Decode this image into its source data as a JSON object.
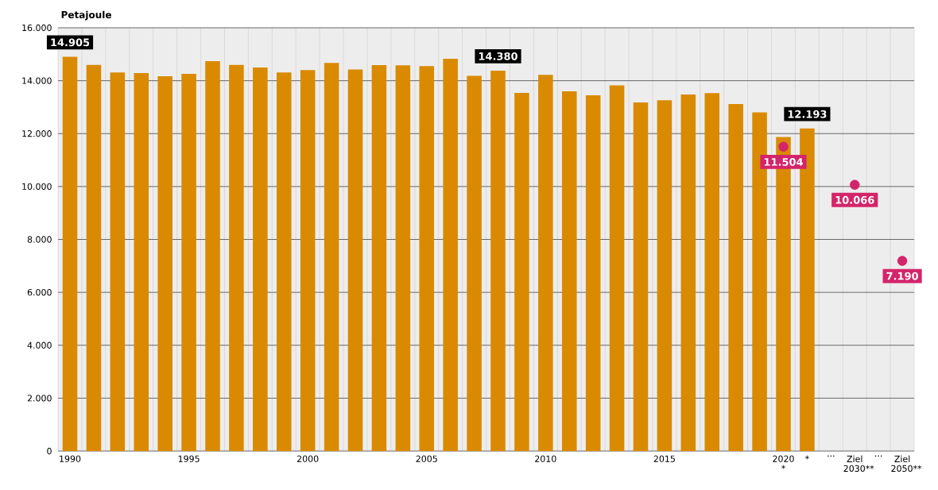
{
  "chart_data": {
    "type": "bar",
    "ylabel": "Petajoule",
    "categories": [
      "1990",
      null,
      null,
      null,
      null,
      "1995",
      null,
      null,
      null,
      null,
      "2000",
      null,
      null,
      null,
      null,
      "2005",
      null,
      null,
      null,
      null,
      "2010",
      null,
      null,
      null,
      null,
      "2015",
      null,
      null,
      null,
      null,
      "2020 *",
      "*",
      "...",
      "Ziel 2030**",
      "...",
      "Ziel 2050**"
    ],
    "series": [
      {
        "color": "#d98a00",
        "values": [
          14905,
          14600,
          14310,
          14290,
          14170,
          14260,
          14740,
          14600,
          14500,
          14310,
          14400,
          14670,
          14420,
          14590,
          14580,
          14550,
          14830,
          14180,
          14380,
          13540,
          14220,
          13600,
          13450,
          13820,
          13180,
          13260,
          13480,
          13530,
          13120,
          12800,
          11870,
          12193,
          null,
          null,
          null,
          null
        ],
        "value_labels": [
          "14.905",
          null,
          null,
          null,
          null,
          null,
          null,
          null,
          null,
          null,
          null,
          null,
          null,
          null,
          null,
          null,
          null,
          null,
          "14.380",
          null,
          null,
          null,
          null,
          null,
          null,
          null,
          null,
          null,
          null,
          null,
          null,
          "12.193",
          null,
          null,
          null,
          null
        ]
      },
      {
        "type": "scatter",
        "color": "#d4246a",
        "values": [
          null,
          null,
          null,
          null,
          null,
          null,
          null,
          null,
          null,
          null,
          null,
          null,
          null,
          null,
          null,
          null,
          null,
          null,
          null,
          null,
          null,
          null,
          null,
          null,
          null,
          null,
          null,
          null,
          null,
          null,
          11504,
          null,
          null,
          10066,
          null,
          7190
        ],
        "value_labels": [
          null,
          null,
          null,
          null,
          null,
          null,
          null,
          null,
          null,
          null,
          null,
          null,
          null,
          null,
          null,
          null,
          null,
          null,
          null,
          null,
          null,
          null,
          null,
          null,
          null,
          null,
          null,
          null,
          null,
          null,
          "11.504",
          null,
          null,
          "10.066",
          null,
          "7.190"
        ]
      }
    ],
    "marker": "circle",
    "ylim": [
      0,
      16000
    ],
    "yticks": [
      {
        "value": 0,
        "label": "0"
      },
      {
        "value": 2000,
        "label": "2.000"
      },
      {
        "value": 4000,
        "label": "4.000"
      },
      {
        "value": 6000,
        "label": "6.000"
      },
      {
        "value": 8000,
        "label": "8.000"
      },
      {
        "value": 10000,
        "label": "10.000"
      },
      {
        "value": 12000,
        "label": "12.000"
      },
      {
        "value": 14000,
        "label": "14.000"
      },
      {
        "value": 16000,
        "label": "16.000"
      }
    ],
    "grid": true
  }
}
